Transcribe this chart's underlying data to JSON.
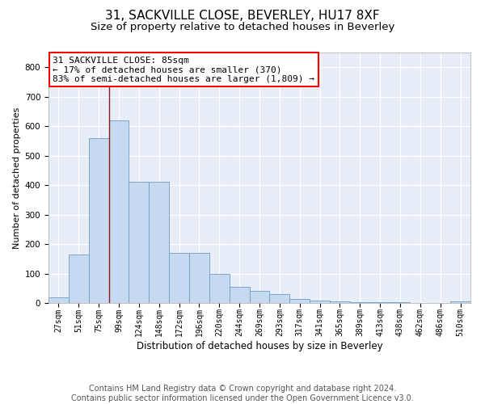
{
  "title1": "31, SACKVILLE CLOSE, BEVERLEY, HU17 8XF",
  "title2": "Size of property relative to detached houses in Beverley",
  "xlabel": "Distribution of detached houses by size in Beverley",
  "ylabel": "Number of detached properties",
  "categories": [
    "27sqm",
    "51sqm",
    "75sqm",
    "99sqm",
    "124sqm",
    "148sqm",
    "172sqm",
    "196sqm",
    "220sqm",
    "244sqm",
    "269sqm",
    "293sqm",
    "317sqm",
    "341sqm",
    "365sqm",
    "389sqm",
    "413sqm",
    "438sqm",
    "462sqm",
    "486sqm",
    "510sqm"
  ],
  "bar_values": [
    18,
    165,
    560,
    620,
    410,
    410,
    170,
    170,
    100,
    55,
    42,
    30,
    13,
    7,
    5,
    4,
    4,
    2,
    1,
    1,
    5
  ],
  "bar_color": "#c6d9f0",
  "bar_edge_color": "#6a9ec5",
  "vline_color": "#8b1a1a",
  "annotation_text": "31 SACKVILLE CLOSE: 85sqm\n← 17% of detached houses are smaller (370)\n83% of semi-detached houses are larger (1,809) →",
  "annotation_box_color": "white",
  "annotation_box_edge_color": "red",
  "ylim": [
    0,
    850
  ],
  "yticks": [
    0,
    100,
    200,
    300,
    400,
    500,
    600,
    700,
    800
  ],
  "background_color": "#e8eef8",
  "grid_color": "white",
  "footer_text": "Contains HM Land Registry data © Crown copyright and database right 2024.\nContains public sector information licensed under the Open Government Licence v3.0.",
  "title1_fontsize": 11,
  "title2_fontsize": 9.5,
  "annotation_fontsize": 8,
  "footer_fontsize": 7,
  "ylabel_fontsize": 8,
  "xlabel_fontsize": 8.5
}
